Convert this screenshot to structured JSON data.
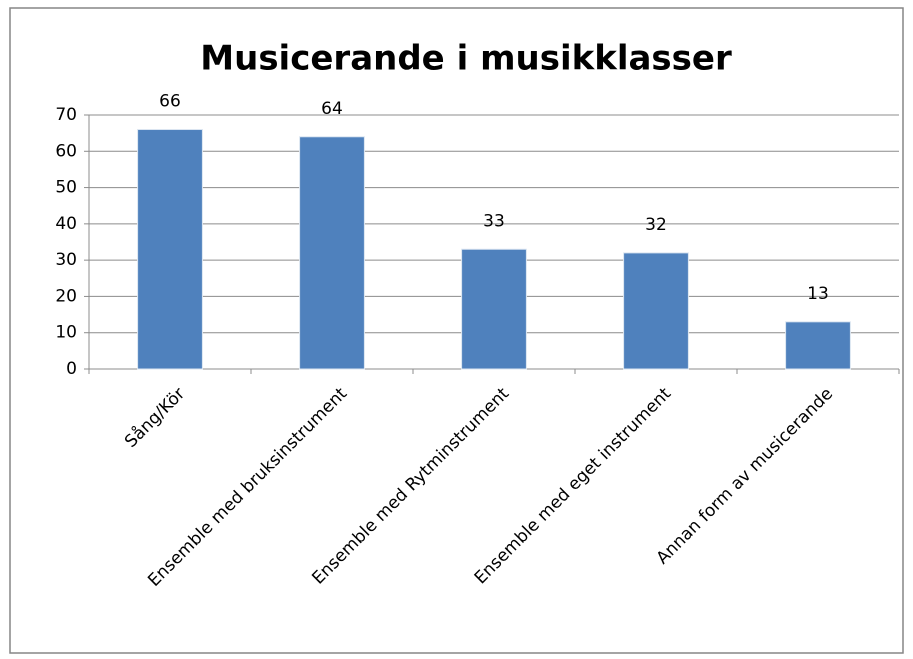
{
  "chart_data": {
    "type": "bar",
    "title": "Musicerande i musikklasser",
    "categories": [
      "Sång/Kör",
      "Ensemble med bruksinstrument",
      "Ensemble med Rytminstrument",
      "Ensemble med eget instrument",
      "Annan form av musicerande"
    ],
    "values": [
      66,
      64,
      33,
      32,
      13
    ],
    "color": "#4f81bd",
    "ylim": [
      0,
      70
    ],
    "yticks": [
      0,
      10,
      20,
      30,
      40,
      50,
      60,
      70
    ],
    "grid": true
  }
}
